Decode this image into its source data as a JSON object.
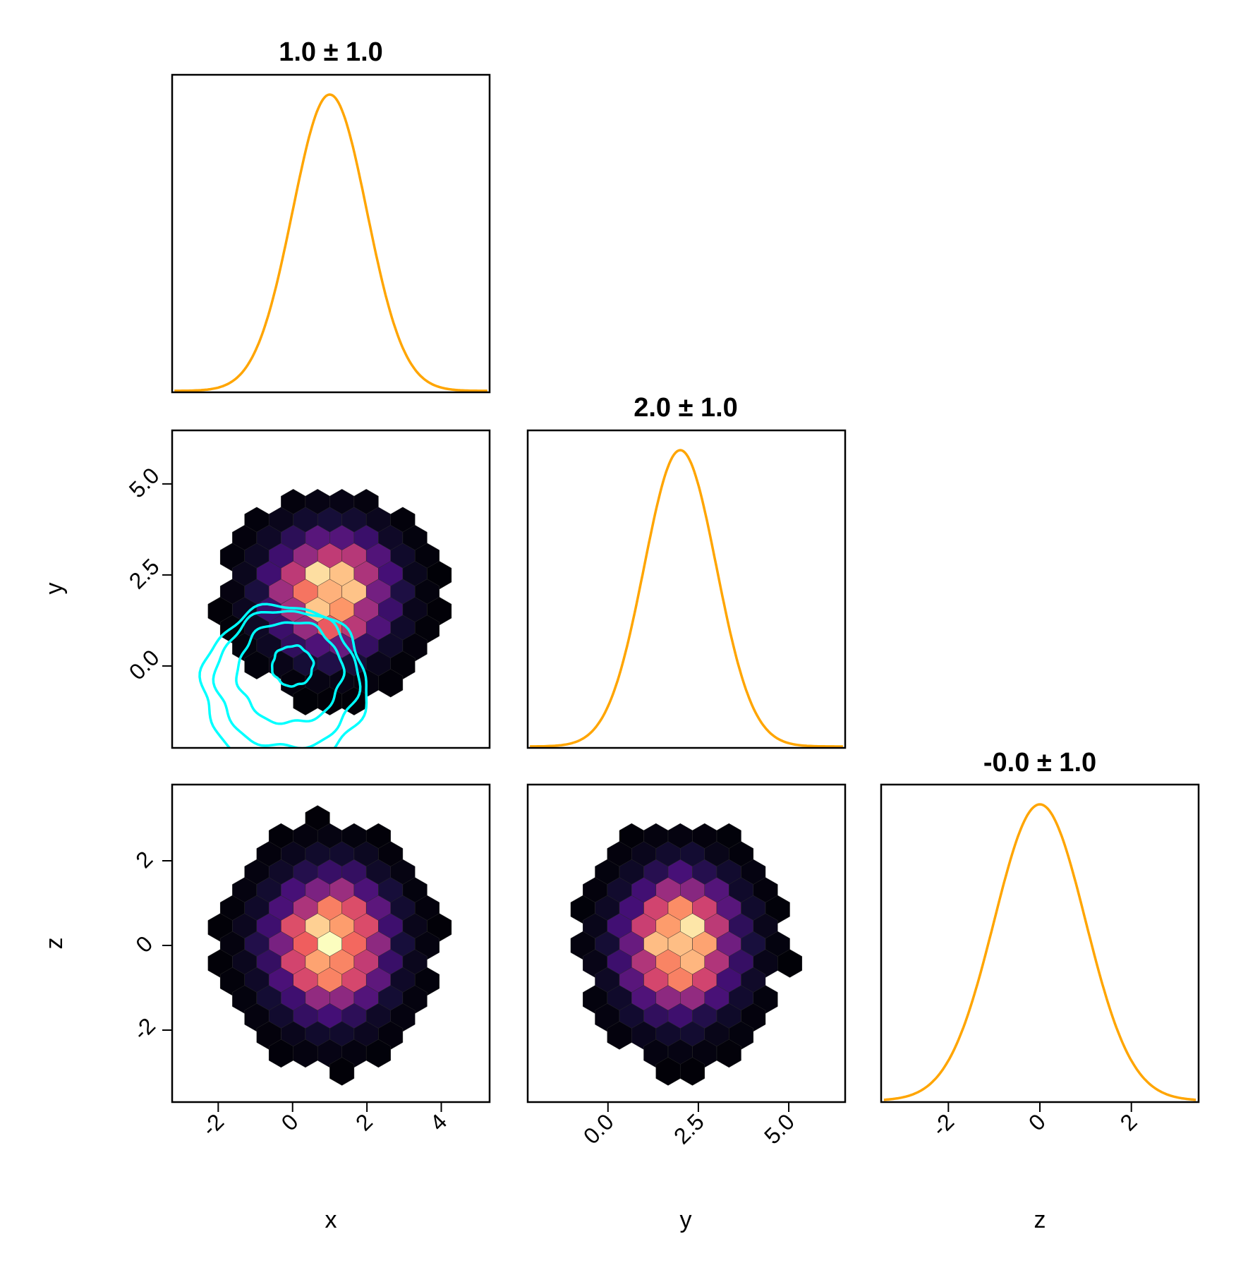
{
  "chart_data": {
    "type": "corner",
    "variables": [
      "x",
      "y",
      "z"
    ],
    "axis_labels": {
      "x": "x",
      "y": "y",
      "z": "z"
    },
    "titles": [
      "1.0 ± 1.0",
      "2.0 ± 1.0",
      "-0.0 ± 1.0"
    ],
    "marginals": [
      {
        "variable": "x",
        "mean": 1.0,
        "std": 1.0,
        "xlim": [
          -3.24,
          5.3
        ],
        "color": "#FFA500"
      },
      {
        "variable": "y",
        "mean": 2.0,
        "std": 1.0,
        "xlim": [
          -2.22,
          6.56
        ],
        "color": "#FFA500"
      },
      {
        "variable": "z",
        "mean": 0.0,
        "std": 1.0,
        "xlim": [
          -3.47,
          3.47
        ],
        "color": "#FFA500"
      }
    ],
    "hexbins": [
      {
        "x": "x",
        "y": "y",
        "xlim": [
          -3.24,
          5.3
        ],
        "ylim": [
          -2.25,
          6.47
        ],
        "center": [
          1.0,
          2.0
        ],
        "std": [
          1.0,
          1.0
        ]
      },
      {
        "x": "x",
        "y": "z",
        "xlim": [
          -3.24,
          5.3
        ],
        "ylim": [
          -3.7,
          3.8
        ],
        "center": [
          1.0,
          0.0
        ],
        "std": [
          1.0,
          1.0
        ]
      },
      {
        "x": "y",
        "y": "z",
        "xlim": [
          -2.22,
          6.56
        ],
        "ylim": [
          -3.7,
          3.8
        ],
        "center": [
          2.0,
          0.0
        ],
        "std": [
          1.0,
          1.0
        ]
      }
    ],
    "contours": {
      "panel": "x-y",
      "color": "#00FFFF",
      "center": [
        0.0,
        0.0
      ],
      "levels_radius": [
        0.55,
        1.4,
        1.9,
        2.2
      ]
    },
    "colormap": [
      "#000004",
      "#180f3d",
      "#440f76",
      "#721f81",
      "#9e2f7f",
      "#cd4071",
      "#f1605d",
      "#fd9668",
      "#feca8d",
      "#fcfdbf"
    ],
    "x_ticks": {
      "x": [
        {
          "v": -2,
          "label": "-2"
        },
        {
          "v": 0,
          "label": "0"
        },
        {
          "v": 2,
          "label": "2"
        },
        {
          "v": 4,
          "label": "4"
        }
      ],
      "y": [
        {
          "v": 0,
          "label": "0.0"
        },
        {
          "v": 2.5,
          "label": "2.5"
        },
        {
          "v": 5,
          "label": "5.0"
        }
      ],
      "z": [
        {
          "v": -2,
          "label": "-2"
        },
        {
          "v": 0,
          "label": "0"
        },
        {
          "v": 2,
          "label": "2"
        }
      ]
    },
    "y_ticks": {
      "y": [
        {
          "v": 0,
          "label": "0.0"
        },
        {
          "v": 2.5,
          "label": "2.5"
        },
        {
          "v": 5,
          "label": "5.0"
        }
      ],
      "z": [
        {
          "v": -2,
          "label": "-2"
        },
        {
          "v": 0,
          "label": "0"
        },
        {
          "v": 2,
          "label": "2"
        }
      ]
    }
  }
}
